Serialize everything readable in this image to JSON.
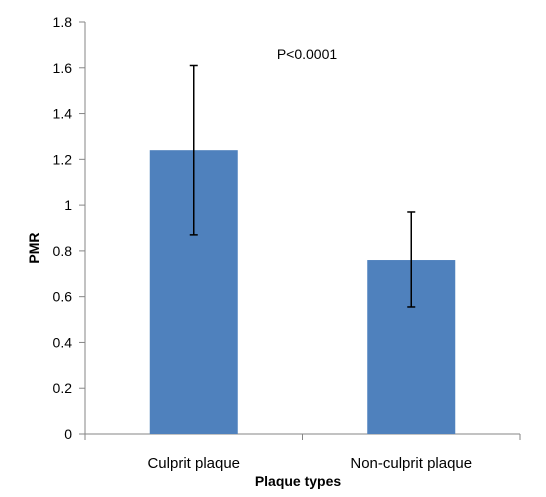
{
  "chart_data": {
    "type": "bar",
    "categories": [
      "Culprit plaque",
      "Non-culprit plaque"
    ],
    "values": [
      1.24,
      0.76
    ],
    "error_low": [
      0.87,
      0.555
    ],
    "error_high": [
      1.61,
      0.97
    ],
    "xlabel": "Plaque types",
    "ylabel": "PMR",
    "ylim": [
      0,
      1.8
    ],
    "yticks": [
      "0",
      "0.2",
      "0.4",
      "0.6",
      "0.8",
      "1",
      "1.2",
      "1.4",
      "1.6",
      "1.8"
    ],
    "ytick_values": [
      0,
      0.2,
      0.4,
      0.6,
      0.8,
      1.0,
      1.2,
      1.4,
      1.6,
      1.8
    ],
    "annotation": "P<0.0001",
    "grid": false,
    "legend": "none",
    "bar_color": "#4f81bd"
  }
}
